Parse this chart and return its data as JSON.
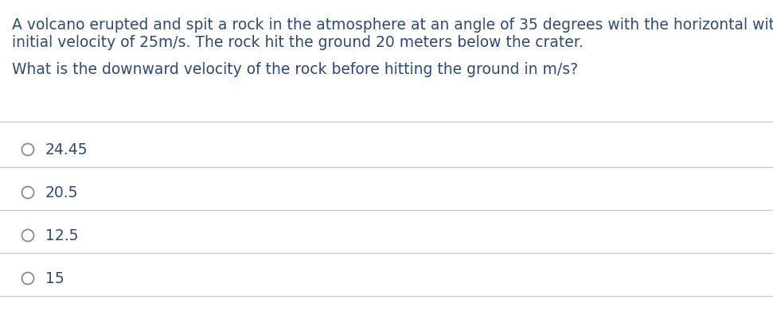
{
  "background_color": "#ffffff",
  "text_color": "#2e4a7a",
  "line_color": "#c8c8c8",
  "paragraph1_line1": "A volcano erupted and spit a rock in the atmosphere at an angle of 35 degrees with the horizontal with an",
  "paragraph1_line2": "initial velocity of 25m/s. The rock hit the ground 20 meters below the crater.",
  "paragraph2": "What is the downward velocity of the rock before hitting the ground in m/s?",
  "options": [
    "24.45",
    "20.5",
    "12.5",
    "15"
  ],
  "font_size_para": 13.5,
  "font_size_options": 13.5,
  "fig_width": 9.71,
  "fig_height": 3.91,
  "dpi": 100
}
